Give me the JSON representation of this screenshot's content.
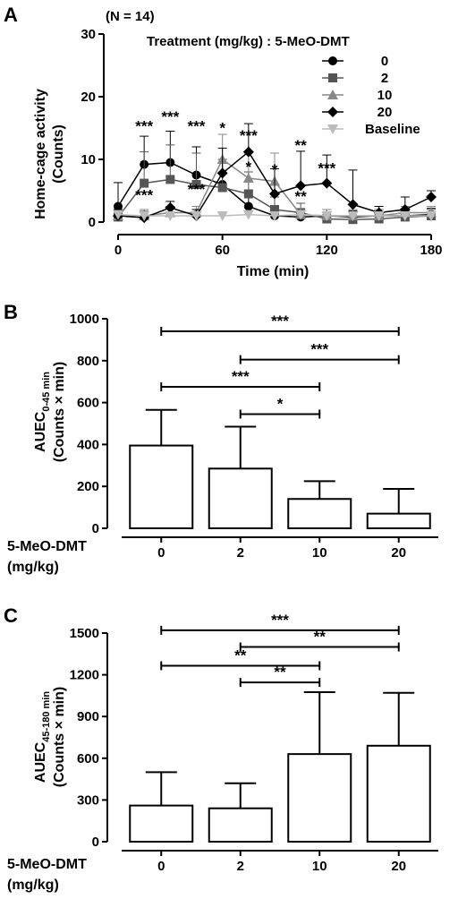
{
  "panels": {
    "a": {
      "letter": "A",
      "n_label": "(N = 14)",
      "legend_title": "Treatment (mg/kg) : 5-MeO-DMT",
      "ylabel_line1": "Home-cage activity",
      "ylabel_line2": "(Counts)",
      "xlabel": "Time (min)"
    },
    "b": {
      "letter": "B",
      "ylabel_line1": "AUEC",
      "ylabel_sub": "0-45 min",
      "ylabel_line2": "(Counts × min)",
      "cat_label_line1": "5-MeO-DMT",
      "cat_label_line2": "(mg/kg)"
    },
    "c": {
      "letter": "C",
      "ylabel_line1": "AUEC",
      "ylabel_sub": "45-180 min",
      "ylabel_line2": "(Counts × min)",
      "cat_label_line1": "5-MeO-DMT",
      "cat_label_line2": "(mg/kg)"
    }
  },
  "chart_data": [
    {
      "type": "line",
      "x": [
        0,
        15,
        30,
        45,
        60,
        75,
        90,
        105,
        120,
        135,
        150,
        165,
        180
      ],
      "xlim": [
        0,
        180
      ],
      "xticks": [
        0,
        60,
        120,
        180
      ],
      "ylim": [
        0,
        30
      ],
      "yticks": [
        0,
        10,
        20,
        30
      ],
      "series": [
        {
          "name": "0",
          "marker": "circle",
          "color": "#000000",
          "values": [
            2.5,
            9.2,
            9.5,
            7.5,
            6,
            2.5,
            1,
            0.8,
            1,
            0.8,
            1,
            1,
            1.2
          ],
          "errors": [
            3.8,
            4.5,
            5,
            4.5,
            4,
            2.5,
            1,
            1,
            1,
            1,
            1,
            1,
            1
          ]
        },
        {
          "name": "2",
          "marker": "square",
          "color": "#555555",
          "values": [
            0.8,
            6.2,
            6.8,
            6,
            5.5,
            4.5,
            2,
            1.5,
            0.5,
            0.4,
            0.5,
            0.8,
            1
          ],
          "errors": [
            1,
            5,
            5.5,
            5,
            4.5,
            3.5,
            2,
            1.5,
            0.5,
            0.5,
            0.5,
            1,
            1
          ]
        },
        {
          "name": "10",
          "marker": "triangle",
          "color": "#888888",
          "values": [
            1,
            1,
            1.5,
            1.5,
            10,
            7,
            6.5,
            1.2,
            1,
            1,
            1,
            1.5,
            1.5
          ],
          "errors": [
            1,
            1,
            1,
            1,
            4,
            4,
            4.5,
            1,
            1,
            1,
            1,
            1,
            1
          ]
        },
        {
          "name": "20",
          "marker": "diamond",
          "color": "#000000",
          "values": [
            1,
            0.7,
            2.3,
            1,
            7.8,
            11.2,
            4.5,
            5.8,
            6.2,
            2.8,
            1.5,
            2,
            4
          ],
          "errors": [
            1,
            1,
            1,
            1,
            4,
            4.5,
            4,
            5.5,
            4.5,
            5.5,
            1,
            2,
            1
          ]
        },
        {
          "name": "Baseline",
          "marker": "triangle-down",
          "color": "#bbbbbb",
          "values": [
            1.2,
            1,
            1,
            1,
            1,
            1.2,
            1,
            1.2,
            1,
            1,
            1,
            1,
            1
          ],
          "errors": [
            0,
            0,
            0,
            0,
            0,
            0,
            0,
            0,
            0,
            0,
            0,
            0,
            0
          ]
        }
      ],
      "annotations": [
        {
          "x": 15,
          "y": 14.5,
          "text": "***"
        },
        {
          "x": 30,
          "y": 16,
          "text": "***"
        },
        {
          "x": 45,
          "y": 14.5,
          "text": "***"
        },
        {
          "x": 60,
          "y": 14.2,
          "text": "*"
        },
        {
          "x": 75,
          "y": 13,
          "text": "***"
        },
        {
          "x": 75,
          "y": 8,
          "text": "*"
        },
        {
          "x": 90,
          "y": 7.6,
          "text": "*"
        },
        {
          "x": 105,
          "y": 11.4,
          "text": "**"
        },
        {
          "x": 120,
          "y": 7.8,
          "text": "***"
        },
        {
          "x": 15,
          "y": 3.5,
          "text": "***"
        },
        {
          "x": 45,
          "y": 4.4,
          "text": "***"
        },
        {
          "x": 105,
          "y": 3.3,
          "text": "**"
        }
      ]
    },
    {
      "type": "bar",
      "categories": [
        "0",
        "2",
        "10",
        "20"
      ],
      "values": [
        395,
        285,
        140,
        70
      ],
      "errors": [
        170,
        200,
        85,
        118
      ],
      "ylim": [
        0,
        1000
      ],
      "yticks": [
        0,
        200,
        400,
        600,
        800,
        1000
      ],
      "comparisons": [
        {
          "from": 0,
          "to": 3,
          "y": 940,
          "text": "***"
        },
        {
          "from": 1,
          "to": 3,
          "y": 805,
          "text": "***"
        },
        {
          "from": 0,
          "to": 2,
          "y": 675,
          "text": "***"
        },
        {
          "from": 1,
          "to": 2,
          "y": 545,
          "text": "*"
        }
      ]
    },
    {
      "type": "bar",
      "categories": [
        "0",
        "2",
        "10",
        "20"
      ],
      "values": [
        260,
        240,
        630,
        690
      ],
      "errors": [
        240,
        180,
        445,
        380
      ],
      "ylim": [
        0,
        1500
      ],
      "yticks": [
        0,
        300,
        600,
        900,
        1200,
        1500
      ],
      "comparisons": [
        {
          "from": 0,
          "to": 3,
          "y": 1520,
          "text": "***"
        },
        {
          "from": 1,
          "to": 3,
          "y": 1400,
          "text": "**"
        },
        {
          "from": 0,
          "to": 2,
          "y": 1265,
          "text": "**"
        },
        {
          "from": 1,
          "to": 2,
          "y": 1145,
          "text": "**"
        }
      ]
    }
  ]
}
